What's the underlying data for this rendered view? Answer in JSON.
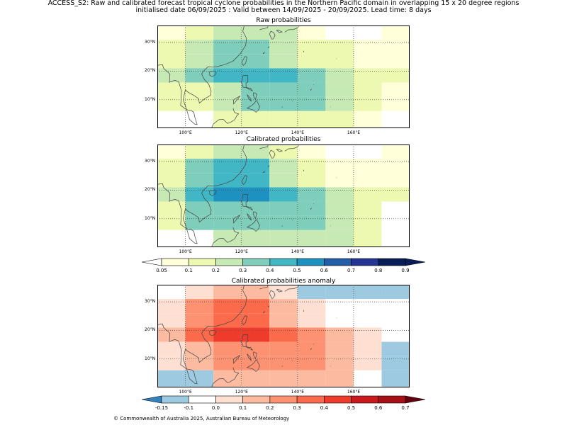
{
  "header": {
    "line1": "ACCESS_S2: Raw and calibrated forecast tropical cyclone probabilities in the Northern Pacific domain in overlapping 15 x 20 degree regions",
    "line2": "initialised date 06/09/2025 :  Valid between 14/09/2025 - 20/09/2025. Lead time: 8 days"
  },
  "map": {
    "lon_range": [
      90,
      180
    ],
    "lat_range": [
      0,
      36
    ],
    "lon_ticks": [
      "100°E",
      "120°E",
      "140°E",
      "160°E"
    ],
    "lat_ticks": [
      "30°N",
      "20°N",
      "10°N"
    ],
    "lon_tick_values": [
      100,
      120,
      140,
      160
    ],
    "lat_tick_values": [
      30,
      20,
      10
    ],
    "cell_lon_edges": [
      90,
      100,
      110,
      120,
      130,
      140,
      150,
      160,
      170,
      180
    ],
    "cell_lat_edges": [
      36,
      31,
      26,
      21,
      16,
      11,
      6,
      0
    ]
  },
  "panels": [
    {
      "title": "Raw probabilities",
      "scale": "prob",
      "grid": [
        [
          0.05,
          0.1,
          0.2,
          0.2,
          0.2,
          0.05,
          0.0,
          0.0,
          0.05
        ],
        [
          0.1,
          0.2,
          0.3,
          0.3,
          0.2,
          0.1,
          0.1,
          0.05,
          0.05
        ],
        [
          0.1,
          0.2,
          0.3,
          0.3,
          0.2,
          0.1,
          0.1,
          0.05,
          0.05
        ],
        [
          0.2,
          0.3,
          0.4,
          0.4,
          0.4,
          0.3,
          0.2,
          0.1,
          0.1
        ],
        [
          0.1,
          0.1,
          0.2,
          0.3,
          0.3,
          0.3,
          0.2,
          0.1,
          0.05
        ],
        [
          0.1,
          0.1,
          0.2,
          0.3,
          0.3,
          0.3,
          0.2,
          0.1,
          0.05
        ],
        [
          0.0,
          0.0,
          0.1,
          0.1,
          0.1,
          0.1,
          0.1,
          0.05,
          0.0
        ]
      ]
    },
    {
      "title": "Calibrated probabilities",
      "scale": "prob",
      "grid": [
        [
          0.05,
          0.1,
          0.2,
          0.2,
          0.1,
          0.05,
          0.0,
          0.0,
          0.05
        ],
        [
          0.1,
          0.3,
          0.4,
          0.4,
          0.2,
          0.1,
          0.05,
          0.05,
          0.05
        ],
        [
          0.1,
          0.3,
          0.4,
          0.4,
          0.2,
          0.1,
          0.05,
          0.05,
          0.05
        ],
        [
          0.2,
          0.4,
          0.5,
          0.5,
          0.4,
          0.3,
          0.2,
          0.1,
          0.1
        ],
        [
          0.1,
          0.3,
          0.3,
          0.3,
          0.3,
          0.3,
          0.2,
          0.1,
          0.0
        ],
        [
          0.1,
          0.3,
          0.3,
          0.3,
          0.3,
          0.3,
          0.2,
          0.1,
          0.0
        ],
        [
          0.0,
          0.0,
          0.2,
          0.2,
          0.2,
          0.2,
          0.2,
          0.1,
          0.0
        ]
      ]
    },
    {
      "title": "Calibrated probabilities anomaly",
      "scale": "anom",
      "grid": [
        [
          -0.1,
          0.0,
          0.1,
          0.1,
          0.0,
          -0.15,
          -0.15,
          -0.15,
          -0.15
        ],
        [
          0.0,
          0.2,
          0.3,
          0.3,
          0.1,
          0.0,
          -0.1,
          -0.1,
          -0.1
        ],
        [
          0.0,
          0.2,
          0.3,
          0.3,
          0.1,
          0.0,
          -0.1,
          -0.1,
          -0.1
        ],
        [
          0.1,
          0.3,
          0.4,
          0.4,
          0.3,
          0.2,
          0.1,
          0.0,
          -0.1
        ],
        [
          0.0,
          0.1,
          0.2,
          0.2,
          0.2,
          0.2,
          0.1,
          0.0,
          -0.15
        ],
        [
          0.0,
          0.1,
          0.2,
          0.2,
          0.2,
          0.2,
          0.1,
          0.0,
          -0.15
        ],
        [
          -0.15,
          -0.15,
          0.1,
          0.1,
          0.1,
          0.1,
          0.1,
          -0.1,
          -0.15
        ]
      ]
    }
  ],
  "colorbars": {
    "prob": {
      "labels": [
        "0.05",
        "0.1",
        "0.2",
        "0.3",
        "0.4",
        "0.5",
        "0.6",
        "0.7",
        "0.8",
        "0.9"
      ],
      "levels": [
        0.05,
        0.1,
        0.2,
        0.3,
        0.4,
        0.5,
        0.6,
        0.7,
        0.8,
        0.9
      ],
      "colors": [
        "#ffffd9",
        "#edf8b1",
        "#c7e9b4",
        "#7fcdbb",
        "#41b6c4",
        "#1d91c0",
        "#225ea8",
        "#253494",
        "#081d58"
      ],
      "under_color": "#ffffff",
      "over_color": "#081d58"
    },
    "anom": {
      "labels": [
        "-0.15",
        "-0.1",
        "0.0",
        "0.1",
        "0.2",
        "0.3",
        "0.4",
        "0.5",
        "0.6",
        "0.7"
      ],
      "levels": [
        -0.15,
        -0.1,
        0.0,
        0.1,
        0.2,
        0.3,
        0.4,
        0.5,
        0.6,
        0.7
      ],
      "colors": [
        "#9ecae1",
        "#ffffff",
        "#fee0d2",
        "#fcbba1",
        "#fc9272",
        "#fb6a4a",
        "#ef3b2c",
        "#cb181d",
        "#a50f15"
      ],
      "under_color": "#3182bd",
      "over_color": "#67000d"
    }
  },
  "footer": {
    "copyright": "© Commonwealth of Australia 2025, Australian Bureau of Meteorology"
  }
}
